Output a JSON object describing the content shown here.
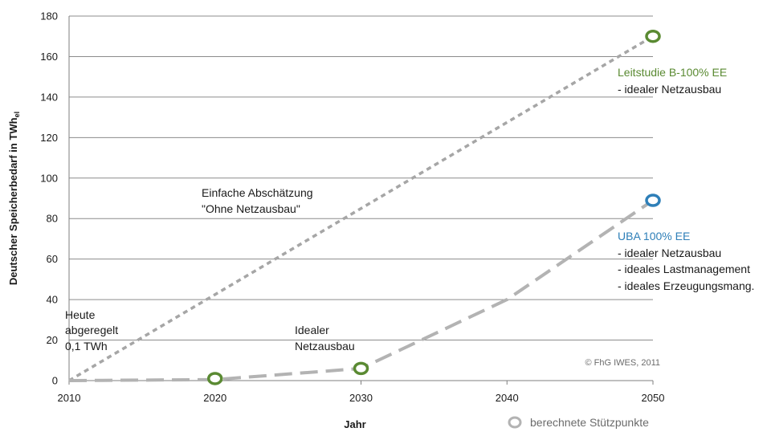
{
  "chart_data": {
    "type": "line",
    "xlabel": "Jahr",
    "ylabel": "Deutscher Speicherbedarf in TWh",
    "ylabel_subscript": "el",
    "xlim": [
      2010,
      2050
    ],
    "ylim": [
      0,
      180
    ],
    "x_ticks": [
      "2010",
      "2020",
      "2030",
      "2040",
      "2050"
    ],
    "y_ticks": [
      "0",
      "20",
      "40",
      "60",
      "80",
      "100",
      "120",
      "140",
      "160",
      "180"
    ],
    "grid": "horizontal",
    "series": [
      {
        "style": "short-dash",
        "color": "#a6a6a6",
        "points": [
          {
            "x": 2010,
            "y": 0
          },
          {
            "x": 2050,
            "y": 170
          }
        ]
      },
      {
        "style": "long-dash",
        "color": "#b3b3b3",
        "points": [
          {
            "x": 2010,
            "y": 0
          },
          {
            "x": 2020,
            "y": 0.5
          },
          {
            "x": 2030,
            "y": 6
          },
          {
            "x": 2040,
            "y": 40
          },
          {
            "x": 2050,
            "y": 89
          }
        ]
      }
    ],
    "markers": [
      {
        "x": 2020,
        "y": 1,
        "color": "#5a8a32"
      },
      {
        "x": 2030,
        "y": 6,
        "color": "#5a8a32"
      },
      {
        "x": 2050,
        "y": 170,
        "color": "#5a8a32"
      },
      {
        "x": 2050,
        "y": 89,
        "color": "#2e7fb8"
      }
    ],
    "annotations": {
      "heute": [
        "Heute",
        "abgeregelt",
        "0,1 TWh"
      ],
      "idealer": [
        "Idealer",
        "Netzausbau"
      ],
      "einfache": [
        "Einfache Abschätzung",
        "\"Ohne Netzausbau\""
      ],
      "leitstudie_title": "Leitstudie B-100% EE",
      "leitstudie_items": [
        "- idealer Netzausbau"
      ],
      "uba_title": "UBA 100% EE",
      "uba_items": [
        "- idealer Netzausbau",
        "- ideales Lastmanagement",
        "- ideales Erzeugungsmang."
      ],
      "copyright": "© FhG IWES, 2011"
    },
    "legend": {
      "label": "berechnete Stützpunkte",
      "placement": "bottom-right"
    }
  }
}
